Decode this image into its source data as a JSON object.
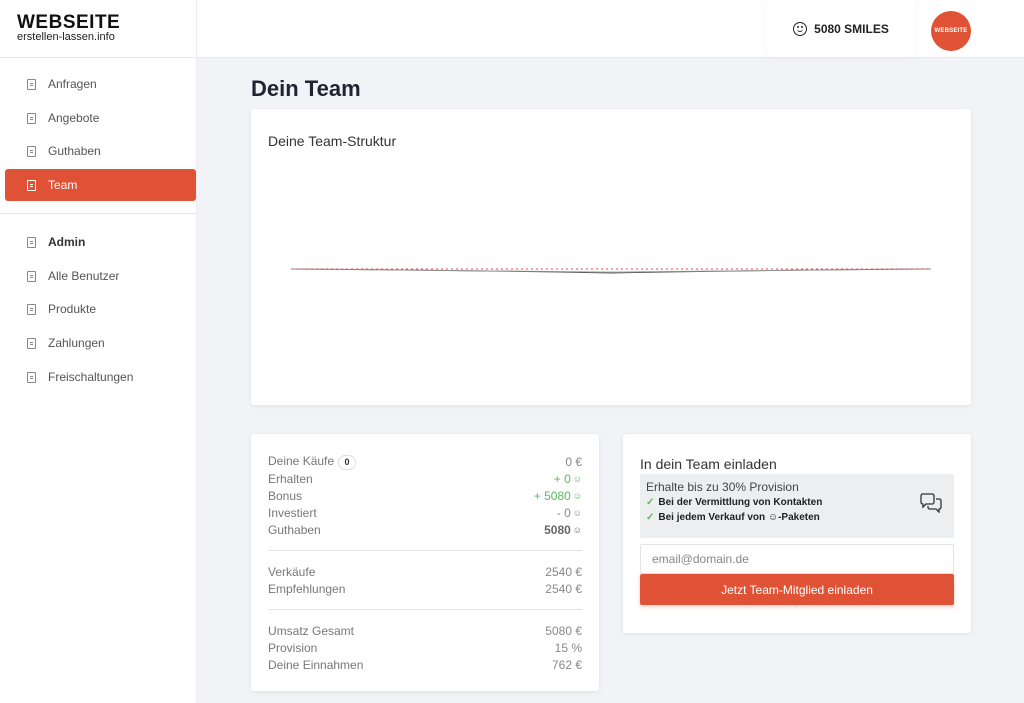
{
  "brand": {
    "name": "WEBSEITE",
    "sub": "erstellen-lassen.info"
  },
  "sidebar": {
    "items": [
      {
        "label": "Anfragen",
        "icon": "document-icon"
      },
      {
        "label": "Angebote",
        "icon": "document-icon"
      },
      {
        "label": "Guthaben",
        "icon": "document-icon"
      },
      {
        "label": "Team",
        "icon": "document-icon",
        "active": true
      }
    ],
    "admin_heading": "Admin",
    "admin_items": [
      {
        "label": "Alle Benutzer",
        "icon": "document-icon"
      },
      {
        "label": "Produkte",
        "icon": "document-icon"
      },
      {
        "label": "Zahlungen",
        "icon": "document-icon"
      },
      {
        "label": "Freischaltungen",
        "icon": "document-icon"
      }
    ]
  },
  "topbar": {
    "smiles": "5080 SMILES",
    "avatar_text": "WEBSEITE"
  },
  "page": {
    "title": "Dein Team"
  },
  "chart": {
    "title": "Deine Team-Struktur"
  },
  "stats": {
    "kaeufe_label": "Deine Käufe",
    "kaeufe_badge": "0",
    "kaeufe_value": "0 €",
    "erhalten_label": "Erhalten",
    "erhalten_value": "+ 0",
    "bonus_label": "Bonus",
    "bonus_value": "+ 5080",
    "investiert_label": "Investiert",
    "investiert_value": "- 0",
    "guthaben_label": "Guthaben",
    "guthaben_value": "5080",
    "verkaeufe_label": "Verkäufe",
    "verkaeufe_value": "2540 €",
    "empfehlungen_label": "Empfehlungen",
    "empfehlungen_value": "2540 €",
    "umsatz_label": "Umsatz Gesamt",
    "umsatz_value": "5080 €",
    "provision_label": "Provision",
    "provision_value": "15 %",
    "einnahmen_label": "Deine Einnahmen",
    "einnahmen_value": "762 €",
    "smile_unit": "☺"
  },
  "invite": {
    "title": "In dein Team einladen",
    "promo_head": "Erhalte bis zu 30% Provision",
    "promo_items": [
      "Bei der Vermittlung von Kontakten",
      "Bei jedem Verkauf von ☺-Paketen"
    ],
    "email_placeholder": "email@domain.de",
    "button_label": "Jetzt Team-Mitglied einladen"
  },
  "colors": {
    "accent": "#e05235",
    "positive": "#5cb85c"
  }
}
